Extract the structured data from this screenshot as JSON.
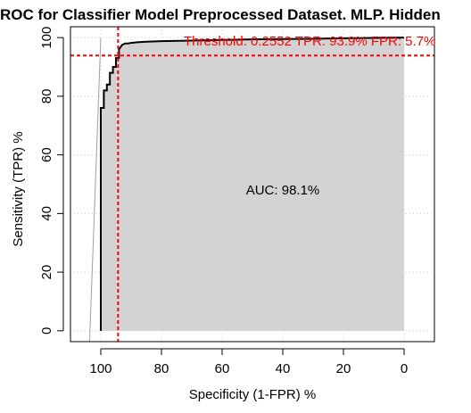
{
  "chart_data": {
    "type": "line",
    "title": "ROC for Classifier Model Preprocessed Dataset. MLP. Hidden",
    "xlabel": "Specificity (1-FPR) %",
    "ylabel": "Sensitivity (TPR) %",
    "xlim": [
      110,
      -10
    ],
    "ylim": [
      0,
      100
    ],
    "x_ticks": [
      "100",
      "80",
      "60",
      "40",
      "20",
      "0"
    ],
    "y_ticks": [
      "0",
      "20",
      "40",
      "60",
      "80",
      "100"
    ],
    "grid": true,
    "auc_label": "AUC: 98.1%",
    "threshold_label": "Threshold: 0.2552 TPR: 93.9% FPR: 5.7%",
    "threshold": {
      "specificity": 94.3,
      "sensitivity": 93.9
    },
    "series": [
      {
        "x": [
          100,
          100,
          99,
          99,
          98,
          98,
          97,
          97,
          96,
          96,
          95,
          95,
          94,
          94,
          93,
          92,
          91,
          90,
          88,
          85,
          80,
          70,
          60,
          50,
          40,
          30,
          20,
          10,
          0
        ],
        "y": [
          0,
          76,
          76,
          82,
          82,
          84,
          84,
          88,
          88,
          90,
          90,
          93,
          93,
          96,
          97.5,
          98,
          98,
          98.2,
          98.4,
          98.6,
          98.8,
          99,
          99.2,
          99.4,
          99.5,
          99.6,
          99.8,
          99.9,
          100
        ]
      }
    ],
    "colors": {
      "fill": "#d3d3d3",
      "curve": "#000000",
      "threshold": "#ff0000",
      "grid": "#d0d0d0",
      "diagonal": "#a0a0a0"
    }
  }
}
